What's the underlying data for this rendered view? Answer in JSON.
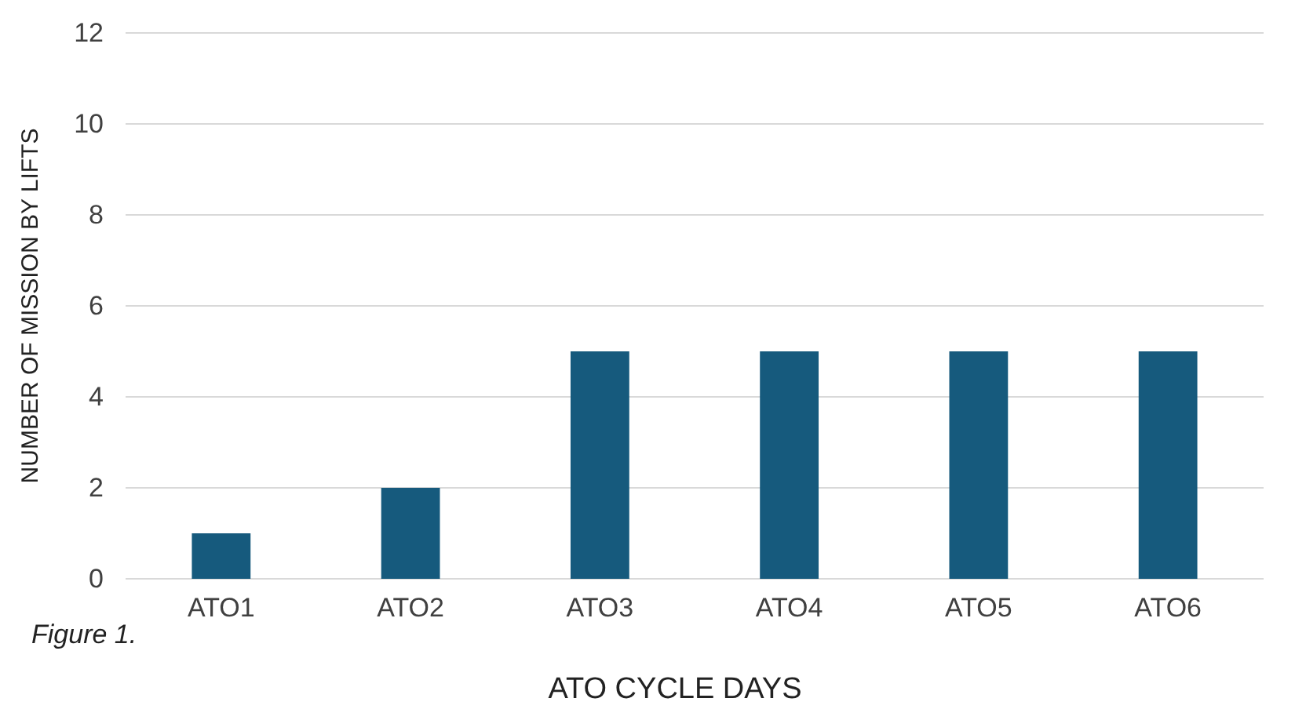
{
  "chart_data": {
    "type": "bar",
    "xlabel": "ATO CYCLE DAYS",
    "ylabel": "NUMBER OF MISSION BY LIFTS",
    "categories": [
      "ATO1",
      "ATO2",
      "ATO3",
      "ATO4",
      "ATO5",
      "ATO6"
    ],
    "values": [
      1,
      2,
      5,
      5,
      5,
      5
    ],
    "color": "#165a7d",
    "ylim": [
      0,
      12
    ],
    "yticks": [
      0,
      2,
      4,
      6,
      8,
      10,
      12
    ],
    "grid": "y",
    "annotations": [
      "Figure 1."
    ]
  }
}
